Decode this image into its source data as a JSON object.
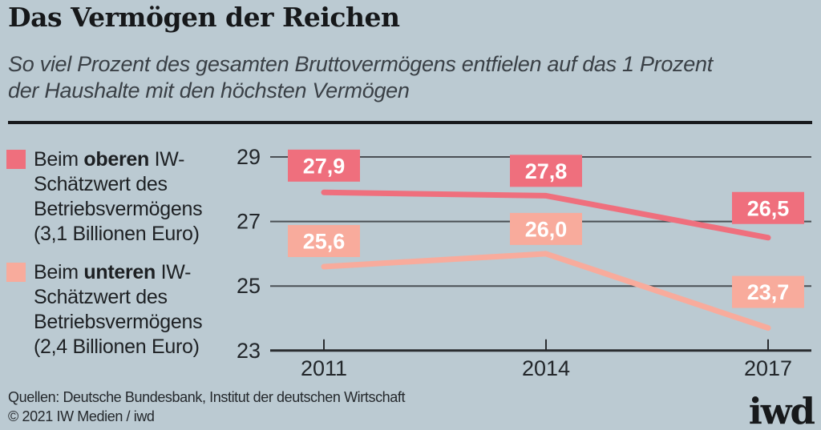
{
  "header": {
    "title": "Das Vermögen der Reichen",
    "subtitle": "So viel Prozent des gesamten Bruttovermögens entfielen auf das 1 Prozent der Haushalte mit den höchsten Vermögen",
    "subtitle_lines": [
      "So viel Prozent des gesamten Bruttovermögens entfielen auf das 1 Prozent",
      "der Haushalte mit den höchsten Vermögen"
    ]
  },
  "legend": [
    {
      "prefix": "Beim",
      "emphasis": "oberen",
      "rest": "IW-Schätzwert des Betriebsvermögens (3,1 Billionen Euro)",
      "color": "#ef6f7d"
    },
    {
      "prefix": "Beim",
      "emphasis": "unteren",
      "rest": "IW-Schätzwert des Betriebsvermögens (2,4 Billionen Euro)",
      "color": "#f8ab9c"
    }
  ],
  "chart_data": {
    "type": "line",
    "title": "Das Vermögen der Reichen",
    "xlabel": "",
    "ylabel": "",
    "x": [
      2011,
      2014,
      2017
    ],
    "x_tick_labels": [
      "2011",
      "2014",
      "2017"
    ],
    "y_ticks": [
      23,
      25,
      27,
      29
    ],
    "y_tick_labels": [
      "23",
      "25",
      "27",
      "29"
    ],
    "ylim": [
      23,
      29.6
    ],
    "grid": true,
    "legend_position": "left",
    "series": [
      {
        "name": "Beim oberen IW-Schätzwert des Betriebsvermögens (3,1 Billionen Euro)",
        "values": [
          27.9,
          27.8,
          26.5
        ],
        "labels": [
          "27,9",
          "27,8",
          "26,5"
        ],
        "color": "#ef6f7d"
      },
      {
        "name": "Beim unteren IW-Schätzwert des Betriebsvermögens (2,4 Billionen Euro)",
        "values": [
          25.6,
          26.0,
          23.7
        ],
        "labels": [
          "25,6",
          "26,0",
          "23,7"
        ],
        "color": "#f8ab9c"
      }
    ]
  },
  "colors": {
    "background": "#bbcad2",
    "grid": "#4a4f54",
    "axis": "#2a2d30",
    "tick_text": "#22262a",
    "label_text": "#ffffff",
    "series_upper": "#ef6f7d",
    "series_lower": "#f8ab9c"
  },
  "footer": {
    "sources": "Quellen: Deutsche Bundesbank, Institut der deutschen Wirtschaft",
    "copyright": "© 2021 IW Medien / iwd",
    "logo": "iwd"
  }
}
